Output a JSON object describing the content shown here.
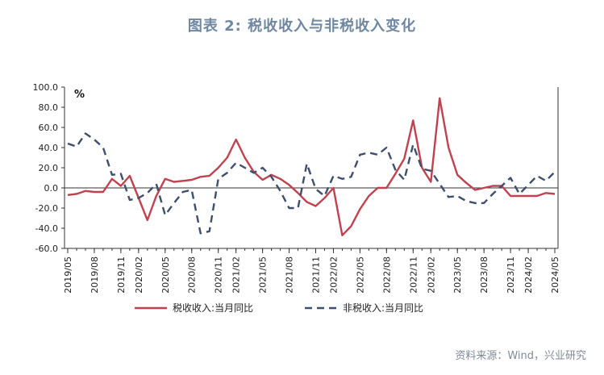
{
  "title": "图表 2: 税收收入与非税收入变化",
  "source": "资料来源：Wind，兴业研究",
  "chart_data": {
    "type": "line",
    "unit_label": "%",
    "ylim": [
      -60,
      100
    ],
    "yticks": [
      "100.0",
      "80.0",
      "60.0",
      "40.0",
      "20.0",
      "0.0",
      "-20.0",
      "-40.0",
      "-60.0"
    ],
    "x_tick_labels": [
      "2019/05",
      "2019/08",
      "2019/11",
      "2020/02",
      "2020/05",
      "2020/08",
      "2020/11",
      "2021/02",
      "2021/05",
      "2021/08",
      "2021/11",
      "2022/02",
      "2022/05",
      "2022/08",
      "2022/11",
      "2023/02",
      "2023/05",
      "2023/08",
      "2023/11",
      "2024/02",
      "2024/05"
    ],
    "x": [
      "2019/05",
      "2019/06",
      "2019/07",
      "2019/08",
      "2019/09",
      "2019/10",
      "2019/11",
      "2019/12",
      "2020/02",
      "2020/03",
      "2020/04",
      "2020/05",
      "2020/06",
      "2020/07",
      "2020/08",
      "2020/09",
      "2020/10",
      "2020/11",
      "2020/12",
      "2021/02",
      "2021/03",
      "2021/04",
      "2021/05",
      "2021/06",
      "2021/07",
      "2021/08",
      "2021/09",
      "2021/10",
      "2021/11",
      "2021/12",
      "2022/02",
      "2022/03",
      "2022/04",
      "2022/05",
      "2022/06",
      "2022/07",
      "2022/08",
      "2022/09",
      "2022/10",
      "2022/11",
      "2022/12",
      "2023/02",
      "2023/03",
      "2023/04",
      "2023/05",
      "2023/06",
      "2023/07",
      "2023/08",
      "2023/09",
      "2023/10",
      "2023/11",
      "2023/12",
      "2024/02",
      "2024/03",
      "2024/04",
      "2024/05"
    ],
    "series": [
      {
        "name": "税收收入:当月同比",
        "color": "#c0424f",
        "style": "solid",
        "values": [
          -7,
          -6,
          -3,
          -4,
          -4,
          9,
          2,
          12,
          -10,
          -32,
          -8,
          9,
          6,
          7,
          8,
          11,
          12,
          20,
          30,
          48,
          30,
          16,
          8,
          13,
          9,
          3,
          -5,
          -14,
          -18,
          -10,
          0,
          -47,
          -38,
          -21,
          -8,
          0,
          0,
          14,
          29,
          67,
          20,
          6,
          89,
          40,
          13,
          5,
          -2,
          0,
          2,
          2,
          -8,
          -8,
          -8,
          -8,
          -5,
          -6
        ]
      },
      {
        "name": "非税收入:当月同比",
        "color": "#3e4f6e",
        "style": "dashed",
        "values": [
          44,
          41,
          54,
          48,
          40,
          13,
          14,
          -12,
          -10,
          -5,
          4,
          -27,
          -15,
          -4,
          -2,
          -45,
          -43,
          9,
          15,
          25,
          20,
          15,
          20,
          11,
          -3,
          -20,
          -20,
          24,
          -1,
          -8,
          12,
          9,
          11,
          33,
          35,
          33,
          40,
          18,
          8,
          43,
          19,
          17,
          4,
          -9,
          -8,
          -13,
          -15,
          -15,
          -6,
          2,
          10,
          -6,
          3,
          12,
          7,
          16
        ]
      }
    ],
    "grid": false,
    "legend_position": "bottom"
  }
}
